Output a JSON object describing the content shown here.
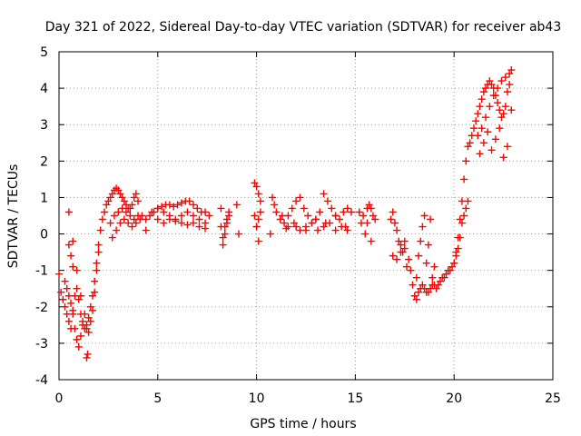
{
  "chart_data": {
    "type": "scatter",
    "title": "Day 321 of 2022, Sidereal Day-to-day VTEC variation (SDTVAR) for receiver ab43",
    "xlabel": "GPS time / hours",
    "ylabel": "SDTVAR / TECUs",
    "xlim": [
      0,
      25
    ],
    "ylim": [
      -4,
      5
    ],
    "xticks": [
      0,
      5,
      10,
      15,
      20,
      25
    ],
    "yticks": [
      -4,
      -3,
      -2,
      -1,
      0,
      1,
      2,
      3,
      4,
      5
    ],
    "xtick_labels": [
      "0",
      "5",
      "10",
      "15",
      "20",
      "25"
    ],
    "ytick_labels": [
      "-4",
      "-3",
      "-2",
      "-1",
      "0",
      "1",
      "2",
      "3",
      "4",
      "5"
    ],
    "grid": true,
    "marker": "+",
    "marker_color": "#ff0000",
    "series": [
      {
        "name": "SDTVAR",
        "x": [
          0.0,
          0.1,
          0.2,
          0.3,
          0.4,
          0.5,
          0.6,
          0.7,
          0.8,
          0.9,
          1.0,
          1.1,
          1.2,
          1.3,
          1.4,
          1.5,
          1.6,
          1.7,
          1.8,
          1.9,
          2.0,
          2.1,
          2.2,
          2.3,
          2.4,
          2.5,
          2.6,
          2.7,
          2.8,
          2.9,
          3.0,
          3.1,
          3.2,
          3.3,
          3.4,
          3.5,
          3.6,
          3.7,
          3.8,
          3.9,
          4.0,
          0.3,
          0.4,
          0.5,
          0.6,
          0.7,
          0.8,
          0.9,
          1.0,
          1.1,
          1.2,
          1.3,
          1.4,
          1.5,
          1.6,
          1.7,
          1.8,
          1.9,
          2.0,
          0.5,
          0.7,
          0.9,
          1.1,
          1.4,
          1.45,
          0.5,
          0.6,
          0.7,
          2.6,
          2.8,
          3.0,
          3.2,
          3.4,
          3.6,
          3.8,
          4.0,
          2.7,
          2.9,
          3.1,
          3.3,
          3.5,
          3.7,
          3.9,
          4.1,
          4.2,
          4.4,
          4.6,
          4.8,
          5.0,
          5.2,
          5.4,
          5.6,
          5.8,
          6.0,
          6.2,
          6.4,
          6.6,
          6.8,
          7.0,
          7.2,
          7.4,
          7.6,
          5.0,
          5.3,
          5.6,
          5.9,
          6.2,
          6.5,
          6.8,
          7.1,
          7.4,
          4.4,
          4.7,
          5.0,
          5.3,
          5.6,
          5.9,
          6.2,
          6.5,
          6.8,
          7.1,
          7.4,
          8.2,
          8.3,
          8.4,
          8.5,
          8.6,
          8.2,
          8.3,
          8.4,
          8.5,
          8.6,
          9.0,
          9.1,
          9.9,
          10.0,
          10.1,
          10.2,
          9.9,
          10.0,
          10.1,
          10.2,
          10.0,
          10.1,
          10.7,
          10.8,
          10.9,
          11.0,
          11.2,
          11.4,
          11.6,
          11.8,
          12.0,
          12.2,
          12.4,
          12.6,
          12.8,
          13.0,
          13.2,
          13.4,
          13.6,
          13.8,
          14.0,
          14.2,
          14.4,
          14.6,
          14.8,
          11.3,
          11.6,
          11.9,
          12.2,
          12.5,
          12.8,
          13.1,
          13.4,
          13.7,
          14.0,
          14.3,
          14.6,
          11.5,
          12.0,
          12.5,
          13.0,
          13.5,
          14.0,
          14.5,
          15.2,
          15.3,
          15.4,
          15.5,
          15.6,
          15.7,
          15.8,
          15.9,
          16.0,
          15.6,
          15.8,
          16.8,
          16.9,
          17.0,
          17.1,
          17.2,
          17.3,
          17.4,
          17.5,
          16.9,
          17.1,
          17.3,
          17.5,
          17.6,
          17.7,
          17.8,
          17.9,
          18.0,
          18.1,
          18.2,
          18.3,
          18.4,
          18.5,
          18.6,
          18.7,
          18.8,
          18.9,
          19.0,
          19.1,
          19.2,
          19.3,
          19.4,
          19.5,
          19.6,
          19.7,
          19.8,
          19.9,
          20.0,
          20.1,
          20.2,
          20.3,
          20.4,
          20.5,
          20.6,
          20.7,
          18.1,
          18.2,
          18.3,
          18.4,
          18.5,
          18.6,
          18.7,
          18.8,
          18.9,
          19.0,
          20.0,
          20.1,
          20.2,
          20.3,
          20.4,
          20.5,
          20.6,
          20.7,
          20.8,
          20.9,
          21.0,
          21.1,
          21.2,
          21.3,
          21.4,
          21.5,
          21.6,
          21.7,
          21.8,
          21.9,
          22.0,
          22.1,
          22.2,
          22.3,
          22.4,
          22.5,
          22.6,
          22.7,
          22.8,
          22.9,
          21.2,
          21.4,
          21.6,
          21.8,
          22.0,
          22.2,
          22.4,
          22.6,
          22.8,
          21.3,
          21.5,
          21.7,
          21.9,
          22.1,
          22.3,
          22.5,
          22.7,
          22.9
        ],
        "y": [
          -1.1,
          -1.6,
          -1.8,
          -2.0,
          -2.2,
          -2.4,
          -2.6,
          -2.1,
          -1.7,
          -1.5,
          -1.8,
          -2.2,
          -2.5,
          -2.6,
          -2.6,
          -2.3,
          -2.0,
          -1.7,
          -1.3,
          -0.8,
          -0.3,
          0.1,
          0.4,
          0.6,
          0.8,
          0.9,
          1.0,
          1.1,
          1.2,
          1.25,
          1.2,
          1.1,
          1.0,
          0.9,
          0.8,
          0.7,
          0.7,
          0.8,
          1.0,
          1.1,
          0.9,
          -1.3,
          -1.5,
          -1.7,
          -1.9,
          -2.2,
          -2.6,
          -2.9,
          -3.1,
          -2.8,
          -2.4,
          -2.2,
          -2.5,
          -2.7,
          -2.4,
          -2.1,
          -1.6,
          -1.0,
          -0.5,
          0.6,
          -0.2,
          -1.0,
          -1.7,
          -3.4,
          -3.3,
          -0.3,
          -0.6,
          -0.9,
          0.3,
          0.5,
          0.6,
          0.7,
          0.6,
          0.5,
          0.4,
          0.5,
          -0.1,
          0.1,
          0.3,
          0.4,
          0.3,
          0.2,
          0.3,
          0.4,
          0.5,
          0.4,
          0.5,
          0.6,
          0.7,
          0.75,
          0.8,
          0.8,
          0.75,
          0.8,
          0.85,
          0.9,
          0.9,
          0.8,
          0.7,
          0.6,
          0.6,
          0.5,
          0.4,
          0.3,
          0.4,
          0.35,
          0.3,
          0.25,
          0.3,
          0.2,
          0.15,
          0.1,
          0.6,
          0.7,
          0.6,
          0.5,
          0.4,
          0.5,
          0.6,
          0.5,
          0.4,
          0.3,
          0.2,
          -0.1,
          0.2,
          0.4,
          0.6,
          0.7,
          -0.3,
          0.0,
          0.3,
          0.5,
          0.8,
          0.0,
          0.5,
          1.3,
          1.1,
          0.9,
          1.4,
          0.2,
          0.4,
          0.6,
          0.2,
          -0.2,
          0.0,
          1.0,
          0.8,
          0.6,
          0.4,
          0.3,
          0.5,
          0.7,
          0.9,
          1.0,
          0.7,
          0.5,
          0.3,
          0.4,
          0.6,
          1.1,
          0.9,
          0.7,
          0.5,
          0.4,
          0.6,
          0.7,
          0.6,
          0.5,
          0.2,
          0.3,
          0.1,
          0.2,
          0.3,
          0.1,
          0.2,
          0.3,
          0.1,
          0.2,
          0.1,
          0.15,
          0.2,
          0.1,
          0.4,
          0.3,
          0.5,
          0.2,
          0.6,
          0.3,
          0.5,
          0.0,
          0.7,
          0.8,
          0.7,
          0.5,
          0.4,
          0.3,
          -0.2,
          0.4,
          0.6,
          0.3,
          0.1,
          -0.2,
          -0.3,
          -0.5,
          -0.4,
          -0.6,
          -0.7,
          -0.5,
          -0.2,
          -0.9,
          -0.7,
          -1.0,
          -1.4,
          -1.7,
          -1.8,
          -1.6,
          -1.5,
          -1.4,
          -1.5,
          -1.6,
          -1.6,
          -1.5,
          -1.4,
          -1.4,
          -1.5,
          -1.4,
          -1.3,
          -1.2,
          -1.2,
          -1.1,
          -1.0,
          -1.0,
          -0.9,
          -0.8,
          -0.6,
          -0.4,
          -0.1,
          0.3,
          0.5,
          0.7,
          0.9,
          -1.2,
          -0.6,
          -0.2,
          0.2,
          0.5,
          -0.8,
          -0.3,
          0.4,
          -1.2,
          -0.9,
          -0.8,
          -0.5,
          -0.1,
          0.4,
          0.9,
          1.5,
          2.0,
          2.4,
          2.5,
          2.7,
          2.9,
          3.1,
          3.3,
          3.5,
          3.7,
          3.9,
          4.0,
          4.1,
          4.2,
          4.1,
          4.0,
          3.8,
          3.6,
          3.4,
          3.2,
          3.3,
          3.5,
          3.9,
          4.4,
          4.5,
          2.7,
          2.9,
          3.2,
          3.5,
          3.8,
          4.0,
          4.2,
          4.3,
          4.1,
          2.2,
          2.5,
          2.8,
          2.3,
          2.6,
          2.9,
          2.1,
          2.4,
          3.4
        ]
      }
    ]
  }
}
